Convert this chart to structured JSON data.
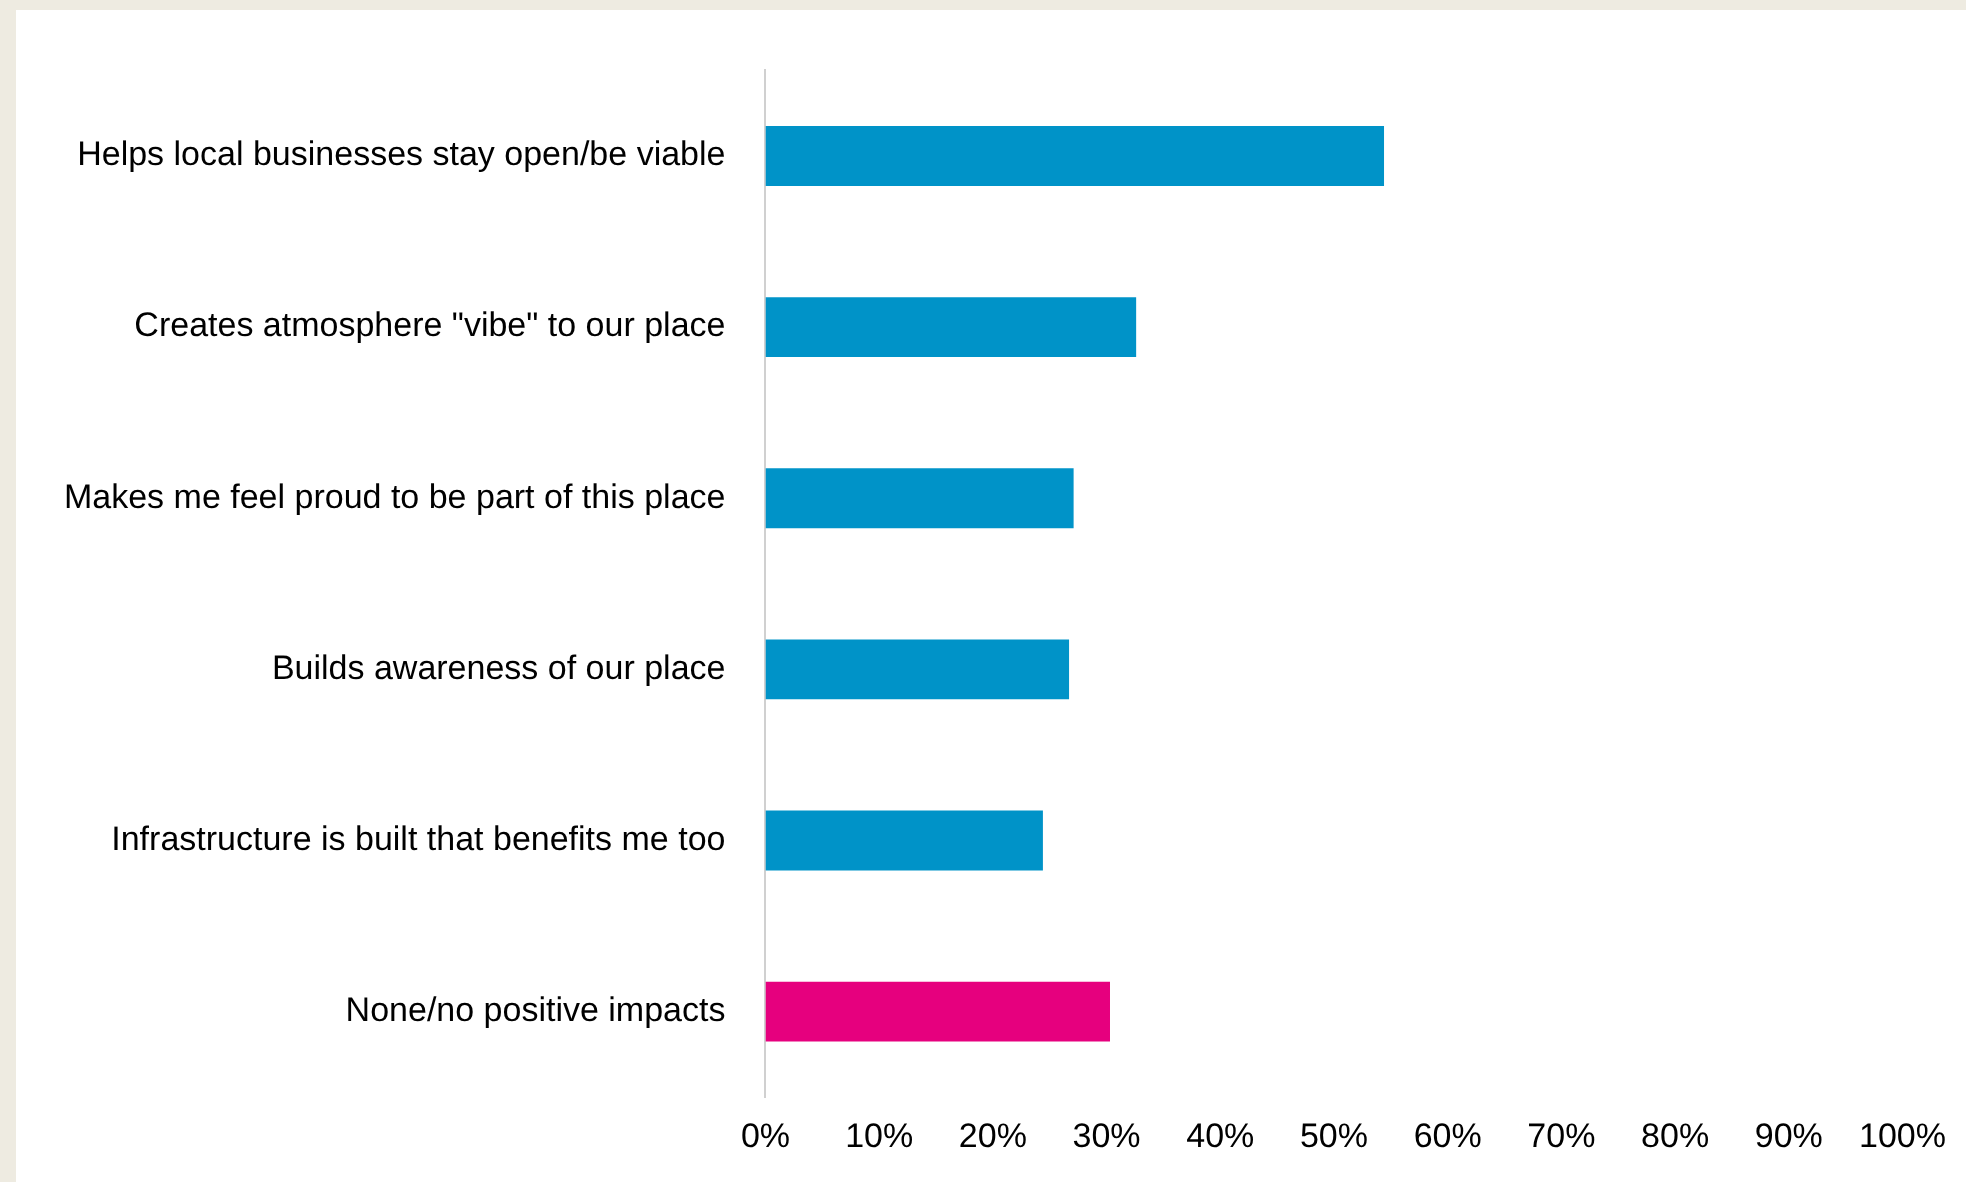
{
  "chart_data": {
    "type": "bar",
    "orientation": "horizontal",
    "categories": [
      "Helps local businesses stay open/be viable",
      "Creates atmosphere \"vibe\" to our place",
      "Makes me feel proud to be part of this place",
      "Builds awareness of our place",
      "Infrastructure is built that benefits me too",
      "None/no positive impacts"
    ],
    "values": [
      54.4,
      32.6,
      27.1,
      26.7,
      24.4,
      30.3
    ],
    "colors": [
      "#0093c8",
      "#0093c8",
      "#0093c8",
      "#0093c8",
      "#0093c8",
      "#e6007e"
    ],
    "xlim": [
      0,
      100
    ],
    "xticks": [
      {
        "value": 0,
        "label": "0%"
      },
      {
        "value": 10,
        "label": "10%"
      },
      {
        "value": 20,
        "label": "20%"
      },
      {
        "value": 30,
        "label": "30%"
      },
      {
        "value": 40,
        "label": "40%"
      },
      {
        "value": 50,
        "label": "50%"
      },
      {
        "value": 60,
        "label": "60%"
      },
      {
        "value": 70,
        "label": "70%"
      },
      {
        "value": 80,
        "label": "80%"
      },
      {
        "value": 90,
        "label": "90%"
      },
      {
        "value": 100,
        "label": "100%"
      }
    ],
    "grid": false,
    "legend": false
  }
}
